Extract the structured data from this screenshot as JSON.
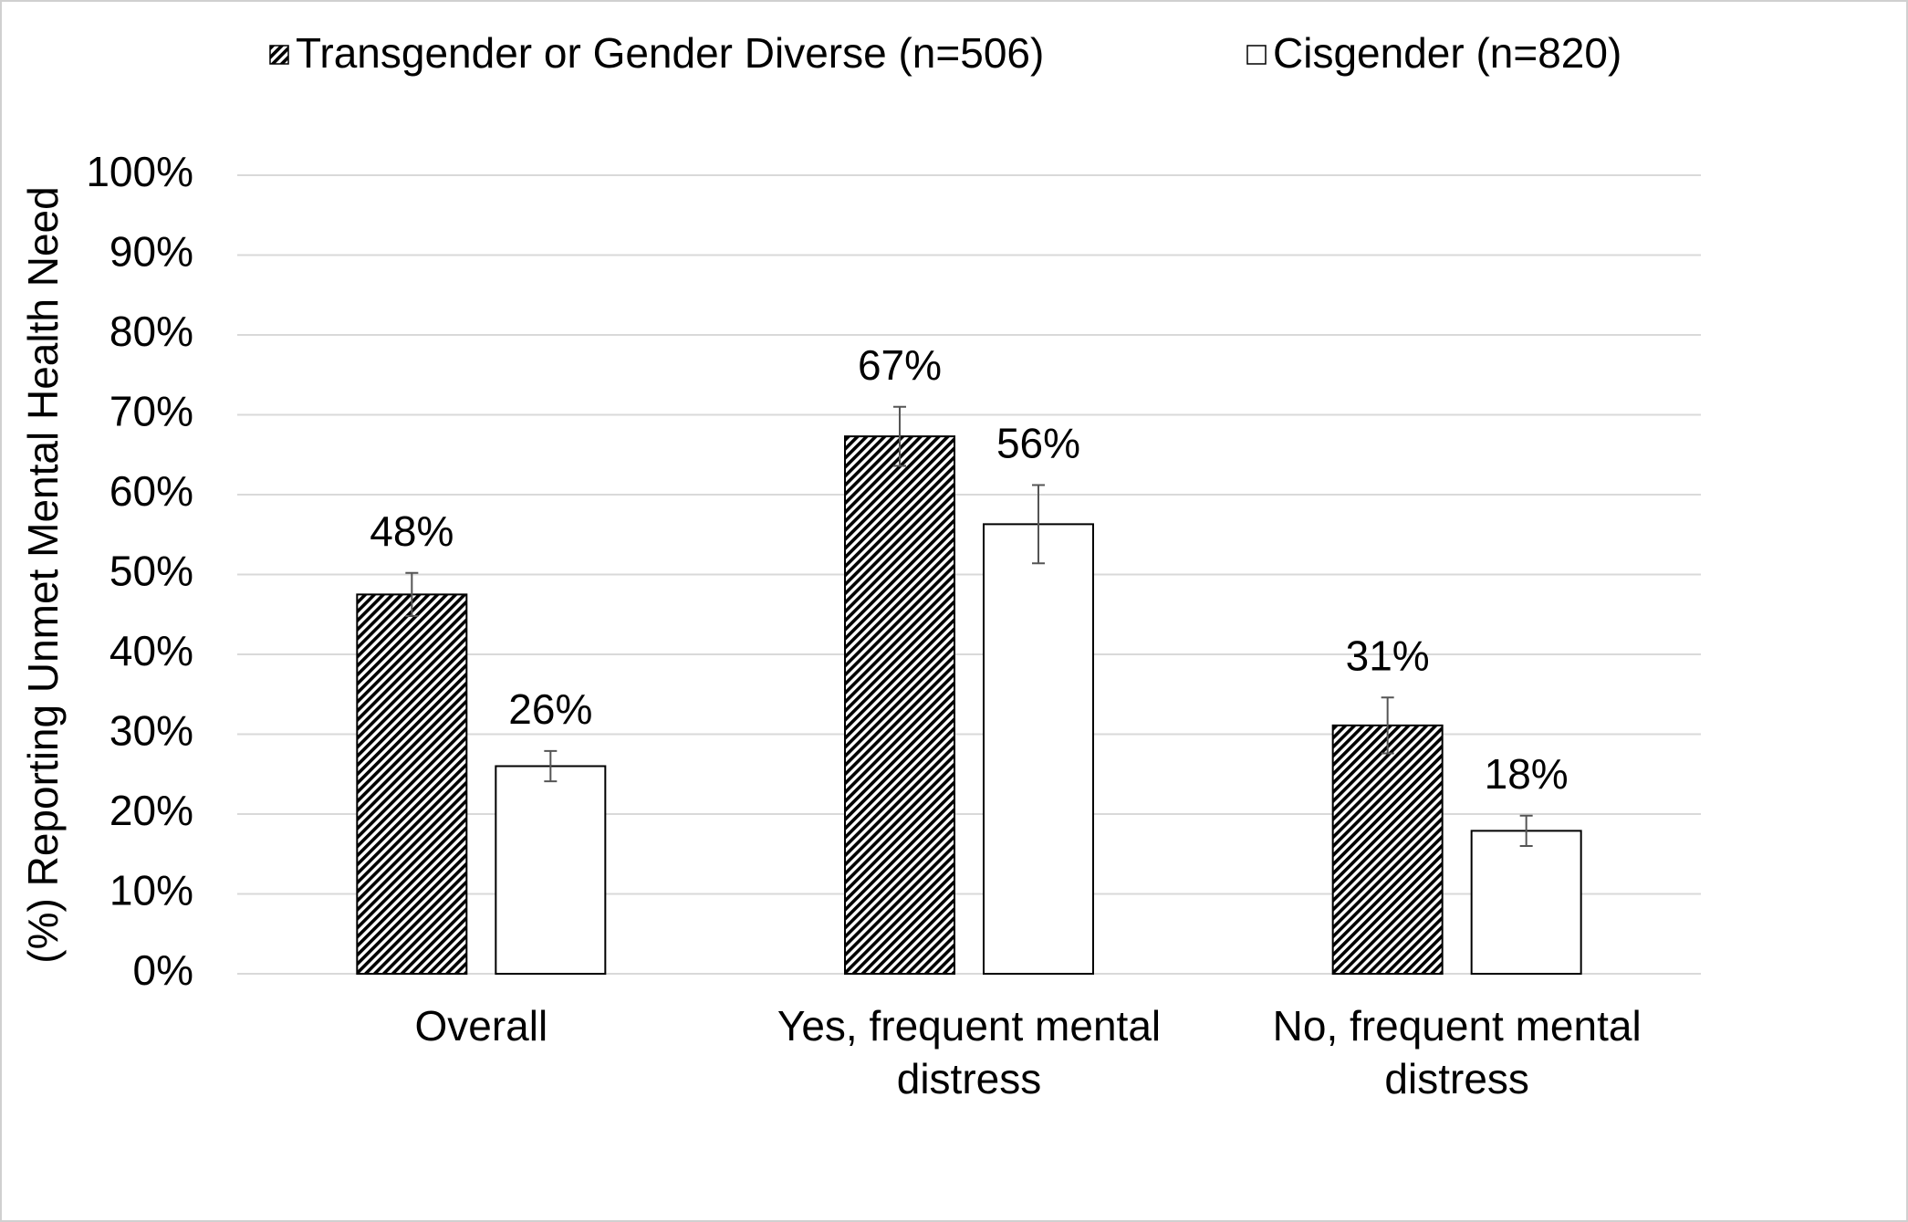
{
  "chart_data": {
    "type": "bar",
    "y_label": "(%) Reporting Unmet Mental Health Need",
    "categories": [
      "Overall",
      "Yes, frequent mental distress",
      "No, frequent mental distress"
    ],
    "series": [
      {
        "name": "Transgender or Gender Diverse (n=506)",
        "color": "#000000",
        "pattern": "diagonal-hatch",
        "values": [
          47.5,
          67.3,
          31.1
        ],
        "value_labels": [
          "48%",
          "67%",
          "31%"
        ],
        "errors": [
          2.7,
          3.7,
          3.5
        ]
      },
      {
        "name": "Cisgender (n=820)",
        "color": "#ffffff",
        "pattern": "none",
        "values": [
          26,
          56.3,
          17.9
        ],
        "value_labels": [
          "26%",
          "56%",
          "18%"
        ],
        "errors": [
          1.9,
          4.9,
          1.9
        ]
      }
    ],
    "ylim": [
      0,
      100
    ],
    "yticks": [
      {
        "value": 0,
        "label": "0%"
      },
      {
        "value": 10,
        "label": "10%"
      },
      {
        "value": 20,
        "label": "20%"
      },
      {
        "value": 30,
        "label": "30%"
      },
      {
        "value": 40,
        "label": "40%"
      },
      {
        "value": 50,
        "label": "50%"
      },
      {
        "value": 60,
        "label": "60%"
      },
      {
        "value": 70,
        "label": "70%"
      },
      {
        "value": 80,
        "label": "80%"
      },
      {
        "value": 90,
        "label": "90%"
      },
      {
        "value": 100,
        "label": "100%"
      }
    ],
    "grid": true,
    "legend": "top"
  }
}
